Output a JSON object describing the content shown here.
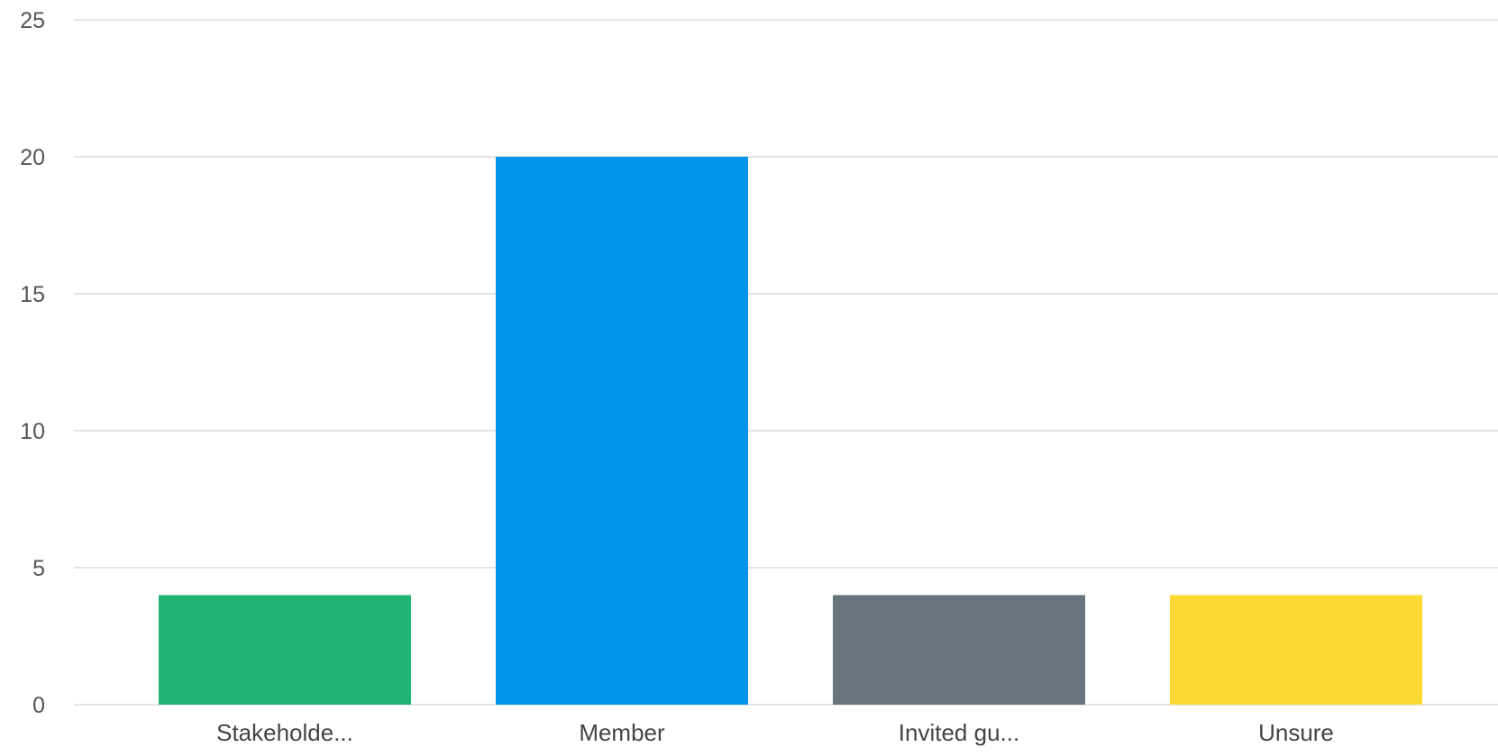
{
  "chart_data": {
    "type": "bar",
    "categories": [
      "Stakeholde...",
      "Member",
      "Invited gu...",
      "Unsure"
    ],
    "values": [
      4,
      20,
      4,
      4
    ],
    "colors": [
      "#21b573",
      "#0095ea",
      "#68757d",
      "#fcd932"
    ],
    "yticks": [
      "0",
      "5",
      "10",
      "15",
      "20",
      "25"
    ],
    "ylim": [
      0,
      25
    ],
    "grid": true,
    "gridColor": "#dcdcdc"
  }
}
